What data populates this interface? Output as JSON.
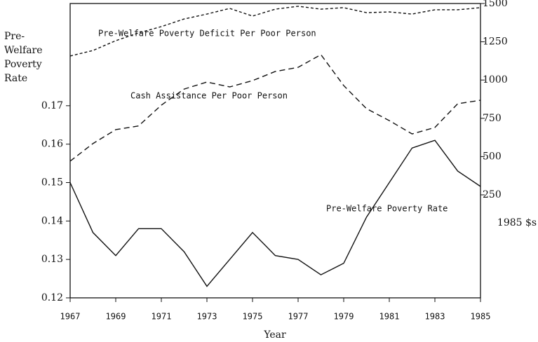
{
  "chart_data": {
    "type": "line",
    "xlabel": "Year",
    "ylabel": [
      "Pre-",
      "Welfare",
      "Poverty",
      "Rate"
    ],
    "y2label": "1985 $s",
    "x": [
      1967,
      1968,
      1969,
      1970,
      1971,
      1972,
      1973,
      1974,
      1975,
      1976,
      1977,
      1978,
      1979,
      1980,
      1981,
      1982,
      1983,
      1984,
      1985
    ],
    "xlim": [
      1967,
      1985
    ],
    "xticks": [
      1967,
      1969,
      1971,
      1973,
      1975,
      1977,
      1979,
      1981,
      1983,
      1985
    ],
    "ylim": [
      0.12,
      0.1966
    ],
    "yticks": [
      0.12,
      0.13,
      0.14,
      0.15,
      0.16,
      0.17
    ],
    "y2lim": [
      -423,
      1500
    ],
    "y2ticks": [
      250,
      500,
      750,
      1000,
      1250,
      1500
    ],
    "series": [
      {
        "name": "Pre-Welfare Poverty Rate",
        "color": "#111111",
        "dash": "none",
        "values": [
          0.15,
          0.137,
          0.131,
          0.138,
          0.138,
          0.132,
          0.123,
          0.13,
          0.137,
          0.131,
          0.13,
          0.126,
          0.129,
          0.141,
          0.15,
          0.159,
          0.161,
          0.153,
          0.149
        ]
      },
      {
        "name": "Cash Assistance Per Poor Person",
        "color": "#111111",
        "dash": "8,5",
        "axis": "y2",
        "values": [
          470,
          585,
          676,
          700,
          836,
          941,
          987,
          955,
          996,
          1056,
          1083,
          1166,
          964,
          813,
          735,
          648,
          690,
          845,
          868
        ]
      },
      {
        "name": "Pre-Welfare Poverty Deficit Per Poor Person",
        "color": "#111111",
        "dash": "4,3",
        "axis": "y2",
        "values": [
          1157,
          1193,
          1257,
          1308,
          1349,
          1399,
          1431,
          1468,
          1418,
          1463,
          1482,
          1463,
          1473,
          1440,
          1445,
          1431,
          1459,
          1459,
          1473
        ]
      }
    ]
  }
}
